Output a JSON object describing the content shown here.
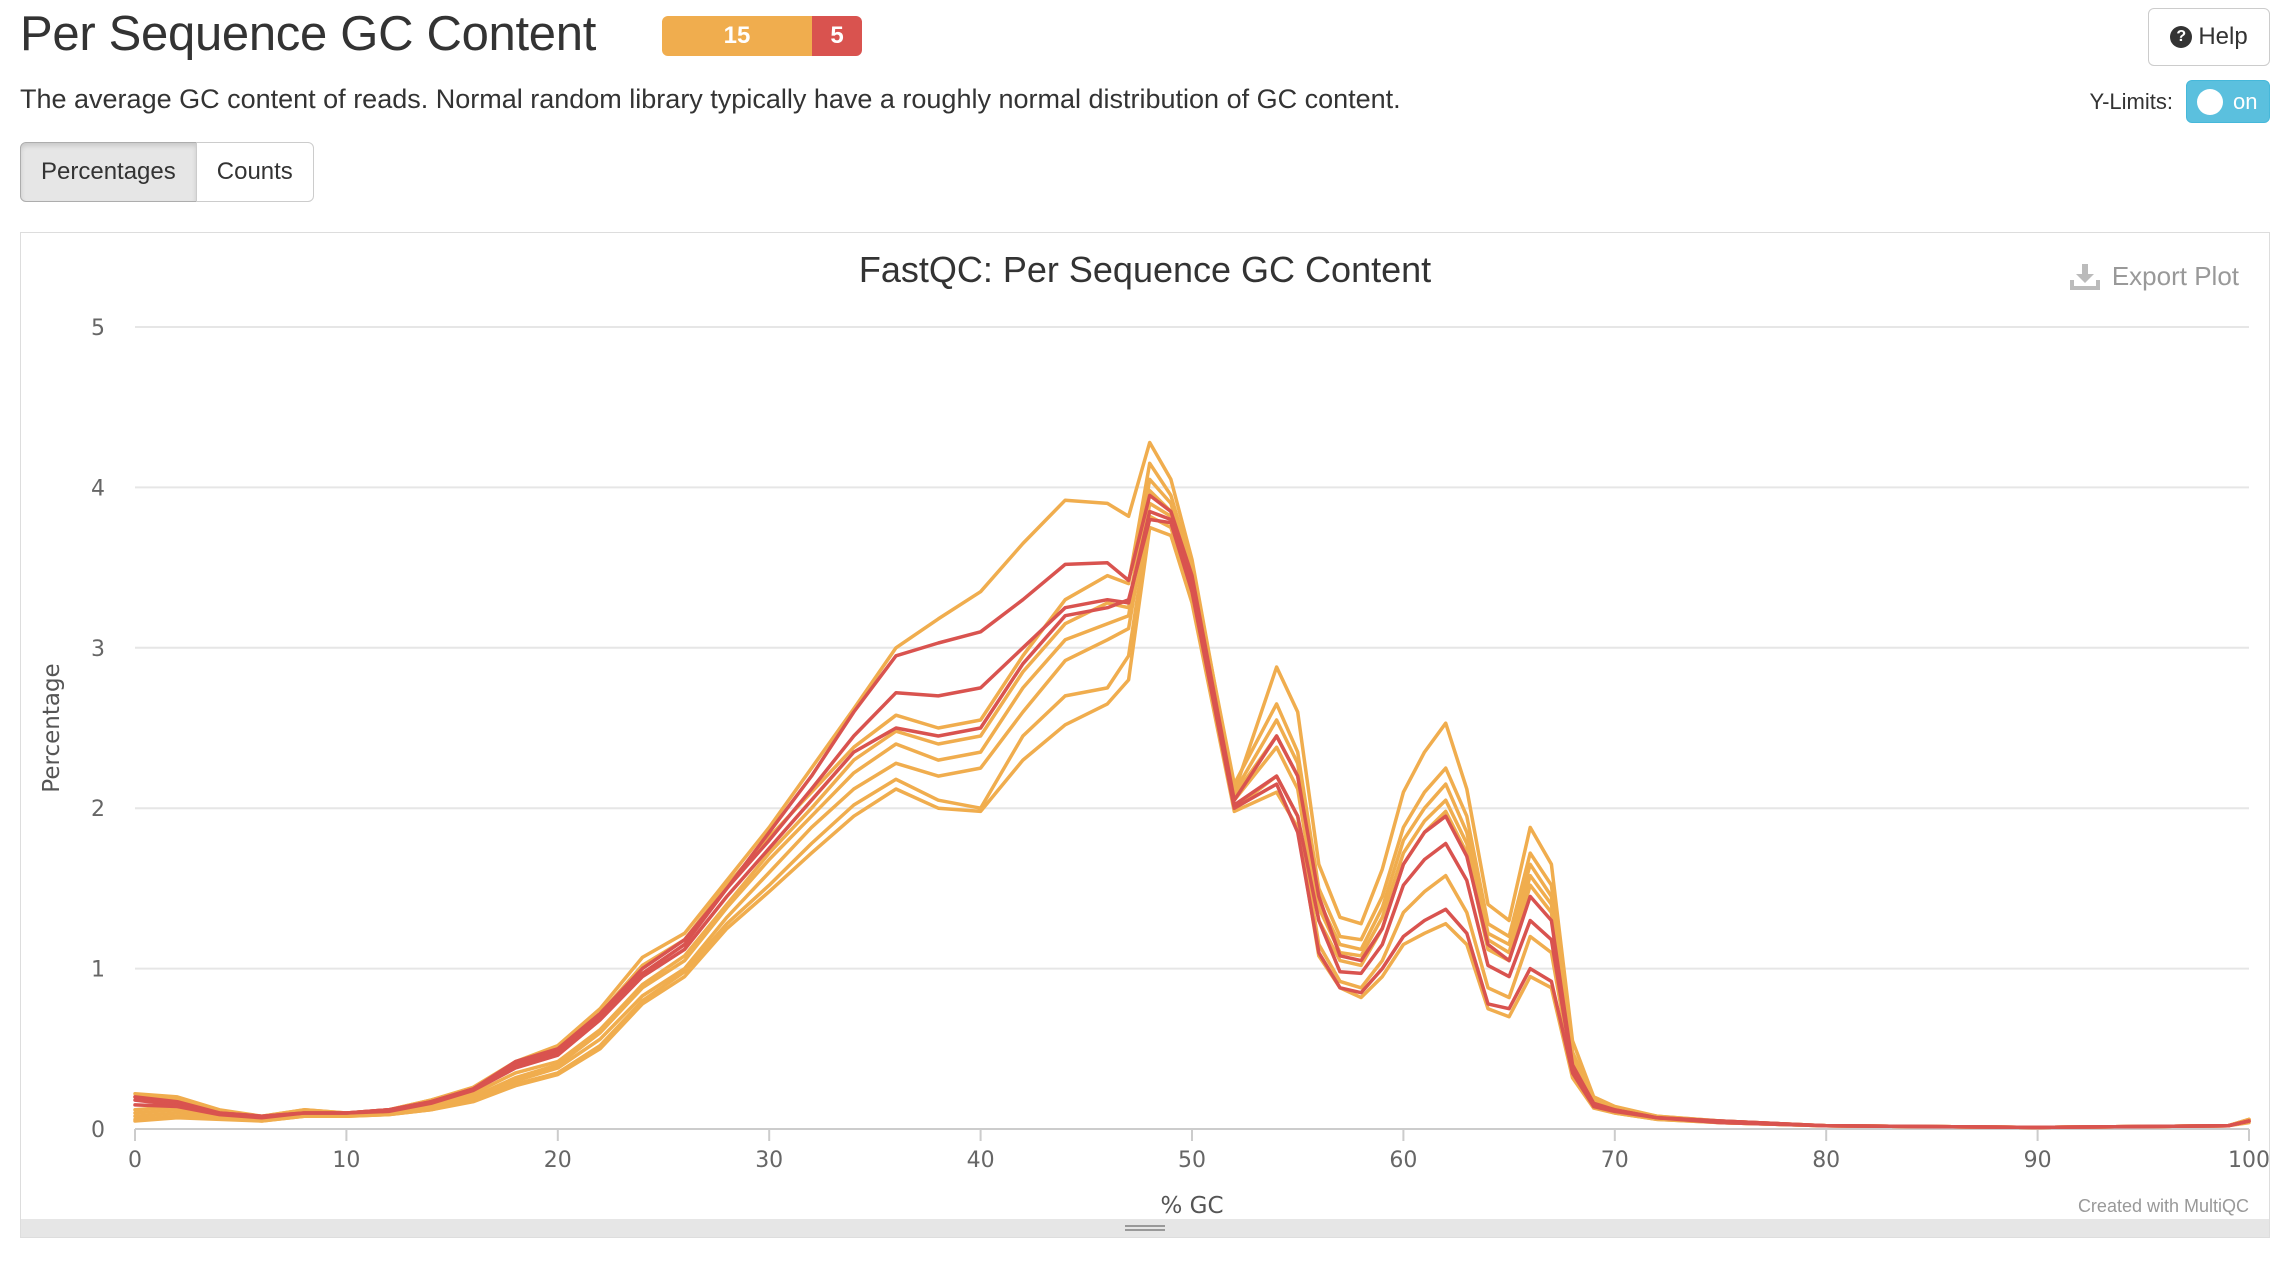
{
  "header": {
    "title": "Per Sequence GC Content",
    "status_warn_count": "15",
    "status_fail_count": "5",
    "help_label": "Help",
    "description": "The average GC content of reads. Normal random library typically have a roughly normal distribution of GC content.",
    "ylimits_label": "Y-Limits:",
    "ylimits_toggle": "on"
  },
  "tabs": [
    {
      "label": "Percentages",
      "active": true
    },
    {
      "label": "Counts",
      "active": false
    }
  ],
  "plot": {
    "export_label": "Export Plot",
    "credit": "Created with MultiQC"
  },
  "colors": {
    "warn": "#f0ad4e",
    "fail": "#d9534f",
    "grid": "#e6e6e6"
  },
  "chart_data": {
    "type": "line",
    "title": "FastQC: Per Sequence GC Content",
    "xlabel": "% GC",
    "ylabel": "Percentage",
    "xlim": [
      0,
      100
    ],
    "ylim": [
      0,
      5
    ],
    "xticks": [
      0,
      10,
      20,
      30,
      40,
      50,
      60,
      70,
      80,
      90,
      100
    ],
    "yticks": [
      0,
      1,
      2,
      3,
      4,
      5
    ],
    "grid": true,
    "x": [
      0,
      2,
      4,
      6,
      8,
      10,
      12,
      14,
      16,
      18,
      20,
      22,
      24,
      26,
      28,
      30,
      32,
      34,
      36,
      38,
      40,
      42,
      44,
      46,
      47,
      48,
      49,
      50,
      52,
      54,
      55,
      56,
      57,
      58,
      59,
      60,
      61,
      62,
      63,
      64,
      65,
      66,
      67,
      68,
      69,
      70,
      72,
      75,
      80,
      90,
      99,
      100
    ],
    "series": [
      {
        "status": "warn",
        "values": [
          0.2,
          0.18,
          0.1,
          0.08,
          0.12,
          0.1,
          0.12,
          0.18,
          0.26,
          0.42,
          0.52,
          0.75,
          1.07,
          1.22,
          1.55,
          1.88,
          2.25,
          2.62,
          3.0,
          3.18,
          3.35,
          3.65,
          3.92,
          3.9,
          3.82,
          4.28,
          4.05,
          3.55,
          2.1,
          2.88,
          2.6,
          1.65,
          1.32,
          1.28,
          1.62,
          2.1,
          2.35,
          2.53,
          2.12,
          1.4,
          1.3,
          1.88,
          1.65,
          0.55,
          0.2,
          0.14,
          0.08,
          0.05,
          0.02,
          0.01,
          0.02,
          0.06
        ]
      },
      {
        "status": "fail",
        "values": [
          0.18,
          0.15,
          0.1,
          0.08,
          0.1,
          0.1,
          0.12,
          0.17,
          0.25,
          0.42,
          0.5,
          0.72,
          1.0,
          1.18,
          1.5,
          1.85,
          2.2,
          2.6,
          2.95,
          3.03,
          3.1,
          3.3,
          3.52,
          3.53,
          3.42,
          3.95,
          3.85,
          3.45,
          2.05,
          2.45,
          2.2,
          1.45,
          1.08,
          1.05,
          1.25,
          1.65,
          1.85,
          1.95,
          1.7,
          1.15,
          1.05,
          1.45,
          1.3,
          0.4,
          0.16,
          0.12,
          0.07,
          0.05,
          0.02,
          0.01,
          0.02,
          0.05
        ]
      },
      {
        "status": "fail",
        "values": [
          0.2,
          0.17,
          0.1,
          0.08,
          0.1,
          0.1,
          0.12,
          0.17,
          0.25,
          0.4,
          0.48,
          0.7,
          0.97,
          1.15,
          1.5,
          1.8,
          2.12,
          2.45,
          2.72,
          2.7,
          2.75,
          3.0,
          3.25,
          3.3,
          3.28,
          3.85,
          3.8,
          3.4,
          2.02,
          2.2,
          1.95,
          1.3,
          0.98,
          0.97,
          1.15,
          1.52,
          1.68,
          1.78,
          1.55,
          1.02,
          0.95,
          1.3,
          1.18,
          0.38,
          0.15,
          0.12,
          0.07,
          0.05,
          0.02,
          0.01,
          0.02,
          0.05
        ]
      },
      {
        "status": "fail",
        "values": [
          0.15,
          0.14,
          0.09,
          0.07,
          0.1,
          0.1,
          0.11,
          0.16,
          0.24,
          0.38,
          0.46,
          0.68,
          0.95,
          1.12,
          1.45,
          1.75,
          2.05,
          2.35,
          2.5,
          2.45,
          2.5,
          2.9,
          3.2,
          3.25,
          3.3,
          3.8,
          3.78,
          3.35,
          2.0,
          2.15,
          1.85,
          1.1,
          0.88,
          0.85,
          1.0,
          1.2,
          1.3,
          1.37,
          1.22,
          0.78,
          0.75,
          1.0,
          0.92,
          0.35,
          0.14,
          0.11,
          0.07,
          0.04,
          0.02,
          0.01,
          0.02,
          0.05
        ]
      },
      {
        "status": "warn",
        "values": [
          0.22,
          0.2,
          0.12,
          0.08,
          0.12,
          0.1,
          0.12,
          0.18,
          0.25,
          0.4,
          0.5,
          0.72,
          1.02,
          1.18,
          1.52,
          1.82,
          2.1,
          2.38,
          2.58,
          2.5,
          2.55,
          2.95,
          3.3,
          3.45,
          3.4,
          4.15,
          3.95,
          3.5,
          2.15,
          2.65,
          2.35,
          1.5,
          1.2,
          1.18,
          1.45,
          1.88,
          2.1,
          2.25,
          1.95,
          1.28,
          1.2,
          1.72,
          1.52,
          0.48,
          0.18,
          0.13,
          0.08,
          0.05,
          0.02,
          0.01,
          0.02,
          0.06
        ]
      },
      {
        "status": "warn",
        "values": [
          0.12,
          0.14,
          0.1,
          0.07,
          0.1,
          0.09,
          0.11,
          0.15,
          0.22,
          0.35,
          0.42,
          0.62,
          0.9,
          1.08,
          1.4,
          1.72,
          2.0,
          2.3,
          2.48,
          2.4,
          2.45,
          2.85,
          3.15,
          3.28,
          3.25,
          4.05,
          3.9,
          3.45,
          2.1,
          2.55,
          2.28,
          1.42,
          1.15,
          1.12,
          1.38,
          1.8,
          2.0,
          2.15,
          1.85,
          1.22,
          1.15,
          1.65,
          1.45,
          0.45,
          0.17,
          0.12,
          0.07,
          0.05,
          0.02,
          0.01,
          0.02,
          0.06
        ]
      },
      {
        "status": "warn",
        "values": [
          0.1,
          0.12,
          0.09,
          0.06,
          0.09,
          0.09,
          0.1,
          0.14,
          0.2,
          0.32,
          0.4,
          0.6,
          0.88,
          1.05,
          1.38,
          1.68,
          1.95,
          2.22,
          2.4,
          2.3,
          2.35,
          2.75,
          3.05,
          3.15,
          3.2,
          3.98,
          3.85,
          3.42,
          2.08,
          2.45,
          2.2,
          1.38,
          1.1,
          1.08,
          1.32,
          1.72,
          1.92,
          2.05,
          1.78,
          1.18,
          1.1,
          1.58,
          1.4,
          0.43,
          0.16,
          0.12,
          0.07,
          0.04,
          0.02,
          0.01,
          0.02,
          0.05
        ]
      },
      {
        "status": "warn",
        "values": [
          0.08,
          0.1,
          0.08,
          0.06,
          0.09,
          0.08,
          0.1,
          0.13,
          0.19,
          0.3,
          0.38,
          0.56,
          0.83,
          1.0,
          1.32,
          1.6,
          1.88,
          2.12,
          2.28,
          2.2,
          2.25,
          2.6,
          2.92,
          3.05,
          3.12,
          3.9,
          3.82,
          3.38,
          2.05,
          2.38,
          2.12,
          1.3,
          1.05,
          1.02,
          1.25,
          1.65,
          1.85,
          1.98,
          1.72,
          1.12,
          1.05,
          1.52,
          1.35,
          0.42,
          0.16,
          0.11,
          0.07,
          0.04,
          0.02,
          0.01,
          0.02,
          0.05
        ]
      },
      {
        "status": "warn",
        "values": [
          0.06,
          0.08,
          0.07,
          0.05,
          0.08,
          0.08,
          0.09,
          0.12,
          0.18,
          0.28,
          0.35,
          0.52,
          0.8,
          0.98,
          1.28,
          1.52,
          1.78,
          2.02,
          2.18,
          2.05,
          2.0,
          2.45,
          2.7,
          2.75,
          2.95,
          3.82,
          3.75,
          3.32,
          2.0,
          2.2,
          1.95,
          1.15,
          0.92,
          0.88,
          1.05,
          1.35,
          1.48,
          1.58,
          1.35,
          0.88,
          0.82,
          1.2,
          1.1,
          0.36,
          0.14,
          0.1,
          0.06,
          0.04,
          0.02,
          0.01,
          0.02,
          0.05
        ]
      },
      {
        "status": "warn",
        "values": [
          0.05,
          0.07,
          0.06,
          0.05,
          0.08,
          0.08,
          0.09,
          0.12,
          0.17,
          0.27,
          0.34,
          0.5,
          0.78,
          0.95,
          1.25,
          1.48,
          1.72,
          1.95,
          2.12,
          2.0,
          1.98,
          2.3,
          2.52,
          2.65,
          2.8,
          3.75,
          3.7,
          3.28,
          1.98,
          2.1,
          1.88,
          1.08,
          0.88,
          0.82,
          0.95,
          1.15,
          1.22,
          1.28,
          1.15,
          0.75,
          0.7,
          0.95,
          0.88,
          0.32,
          0.13,
          0.1,
          0.06,
          0.04,
          0.02,
          0.01,
          0.02,
          0.04
        ]
      }
    ]
  }
}
